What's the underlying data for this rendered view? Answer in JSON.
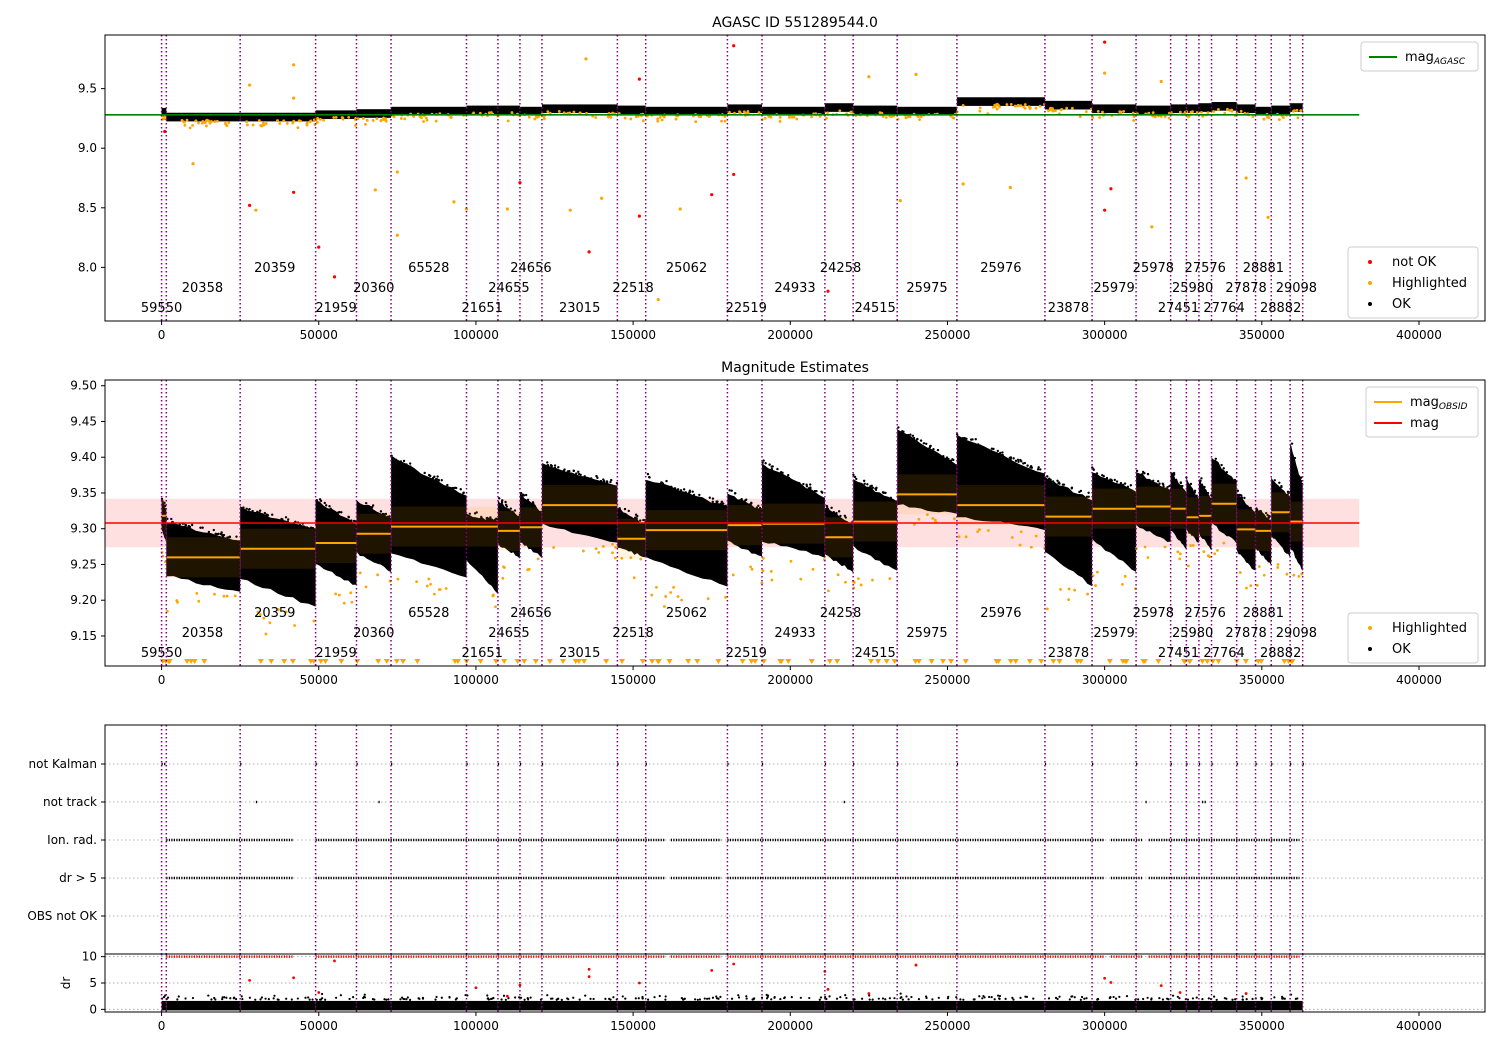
{
  "figure": {
    "background": "#ffffff"
  },
  "obs_bounds": [
    0,
    1500,
    25000,
    49000,
    62000,
    73000,
    97000,
    107000,
    114000,
    121000,
    145000,
    154000,
    180000,
    191000,
    211000,
    220000,
    234000,
    253000,
    281000,
    296000,
    310000,
    321000,
    326000,
    330000,
    334000,
    342000,
    348000,
    353000,
    359000,
    363000
  ],
  "obs_labels": [
    {
      "text": "59550",
      "x": 0,
      "row": 2
    },
    {
      "text": "20358",
      "x": 13000,
      "row": 1
    },
    {
      "text": "20359",
      "x": 36000,
      "row": 0
    },
    {
      "text": "21959",
      "x": 55500,
      "row": 2
    },
    {
      "text": "20360",
      "x": 67500,
      "row": 1
    },
    {
      "text": "65528",
      "x": 85000,
      "row": 0
    },
    {
      "text": "21651",
      "x": 102000,
      "row": 2
    },
    {
      "text": "24655",
      "x": 110500,
      "row": 1
    },
    {
      "text": "24656",
      "x": 117500,
      "row": 0
    },
    {
      "text": "23015",
      "x": 133000,
      "row": 2
    },
    {
      "text": "22518",
      "x": 150000,
      "row": 1
    },
    {
      "text": "25062",
      "x": 167000,
      "row": 0
    },
    {
      "text": "22519",
      "x": 186000,
      "row": 2
    },
    {
      "text": "24933",
      "x": 201500,
      "row": 1
    },
    {
      "text": "24258",
      "x": 216000,
      "row": 0
    },
    {
      "text": "24515",
      "x": 227000,
      "row": 2
    },
    {
      "text": "25975",
      "x": 243500,
      "row": 1
    },
    {
      "text": "25976",
      "x": 267000,
      "row": 0
    },
    {
      "text": "23878",
      "x": 288500,
      "row": 2
    },
    {
      "text": "25979",
      "x": 303000,
      "row": 1
    },
    {
      "text": "25978",
      "x": 315500,
      "row": 0
    },
    {
      "text": "27451",
      "x": 323500,
      "row": 2
    },
    {
      "text": "25980",
      "x": 328000,
      "row": 1
    },
    {
      "text": "27576",
      "x": 332000,
      "row": 0
    },
    {
      "text": "27764",
      "x": 338000,
      "row": 2
    },
    {
      "text": "27878",
      "x": 345000,
      "row": 1
    },
    {
      "text": "28881",
      "x": 350500,
      "row": 0
    },
    {
      "text": "28882",
      "x": 356000,
      "row": 2
    },
    {
      "text": "29098",
      "x": 361000,
      "row": 1
    }
  ],
  "x_axis": {
    "range": [
      -18000,
      421000
    ],
    "ticks": [
      "0",
      "50000",
      "100000",
      "150000",
      "200000",
      "250000",
      "300000",
      "350000",
      "400000"
    ]
  },
  "chart_data": [
    {
      "type": "scatter",
      "title": "AGASC ID 551289544.0",
      "xlim": [
        -18000,
        421000
      ],
      "ylim": [
        7.55,
        9.95
      ],
      "yticks": [
        "8.0",
        "8.5",
        "9.0",
        "9.5"
      ],
      "ytick_values": [
        8.0,
        8.5,
        9.0,
        9.5
      ],
      "agasc_mag": 9.28,
      "agasc_mag_line_x": [
        -18000,
        381000
      ],
      "obs_levels": [
        9.31,
        9.27,
        9.27,
        9.29,
        9.3,
        9.32,
        9.33,
        9.33,
        9.32,
        9.34,
        9.33,
        9.32,
        9.34,
        9.32,
        9.35,
        9.33,
        9.32,
        9.4,
        9.37,
        9.34,
        9.33,
        9.34,
        9.34,
        9.35,
        9.36,
        9.34,
        9.32,
        9.33,
        9.35
      ],
      "obs_spread": 0.05,
      "legends": [
        {
          "position": "top-right",
          "entries": [
            {
              "label": "mag",
              "sub": "AGASC",
              "marker": "line",
              "color": "#008000"
            }
          ]
        },
        {
          "position": "bottom-right",
          "entries": [
            {
              "label": "not OK",
              "marker": "dot",
              "color": "#ff0000"
            },
            {
              "label": "Highlighted",
              "marker": "dot",
              "color": "#ffa500"
            },
            {
              "label": "OK",
              "marker": "dot",
              "color": "#000000"
            }
          ]
        }
      ],
      "not_ok_points": [
        [
          1000,
          9.14
        ],
        [
          28000,
          8.52
        ],
        [
          42000,
          8.63
        ],
        [
          50000,
          8.17
        ],
        [
          55000,
          7.92
        ],
        [
          114000,
          8.71
        ],
        [
          136000,
          8.13
        ],
        [
          152000,
          9.58
        ],
        [
          152000,
          8.43
        ],
        [
          175000,
          8.61
        ],
        [
          182000,
          9.86
        ],
        [
          182000,
          8.78
        ],
        [
          212000,
          7.8
        ],
        [
          300000,
          9.89
        ],
        [
          300000,
          8.48
        ],
        [
          302000,
          8.66
        ]
      ],
      "highlighted_points": [
        [
          10000,
          8.87
        ],
        [
          28000,
          9.53
        ],
        [
          30000,
          8.48
        ],
        [
          42000,
          9.7
        ],
        [
          42000,
          9.42
        ],
        [
          68000,
          8.65
        ],
        [
          75000,
          8.27
        ],
        [
          75000,
          8.8
        ],
        [
          93000,
          8.55
        ],
        [
          97000,
          8.49
        ],
        [
          110000,
          8.49
        ],
        [
          130000,
          8.48
        ],
        [
          135000,
          9.75
        ],
        [
          140000,
          8.58
        ],
        [
          158000,
          7.73
        ],
        [
          165000,
          8.49
        ],
        [
          225000,
          9.6
        ],
        [
          235000,
          8.56
        ],
        [
          240000,
          9.62
        ],
        [
          255000,
          8.7
        ],
        [
          270000,
          8.67
        ],
        [
          300000,
          9.63
        ],
        [
          315000,
          8.34
        ],
        [
          318000,
          9.56
        ],
        [
          345000,
          8.75
        ],
        [
          352000,
          8.42
        ]
      ]
    },
    {
      "type": "scatter",
      "title": "Magnitude Estimates",
      "xlim": [
        -18000,
        421000
      ],
      "ylim": [
        9.108,
        9.508
      ],
      "yticks": [
        "9.15",
        "9.20",
        "9.25",
        "9.30",
        "9.35",
        "9.40",
        "9.45",
        "9.50"
      ],
      "ytick_values": [
        9.15,
        9.2,
        9.25,
        9.3,
        9.35,
        9.4,
        9.45,
        9.5
      ],
      "mag": 9.308,
      "mag_band": [
        9.274,
        9.342
      ],
      "mag_line_x": [
        -18000,
        381000
      ],
      "mag_obsid": [
        9.318,
        9.26,
        9.272,
        9.28,
        9.293,
        9.303,
        9.303,
        9.297,
        9.302,
        9.333,
        9.286,
        9.298,
        9.305,
        9.307,
        9.288,
        9.31,
        9.348,
        9.333,
        9.317,
        9.328,
        9.331,
        9.328,
        9.316,
        9.318,
        9.335,
        9.299,
        9.297,
        9.323,
        9.31
      ],
      "obs_ranges": [
        [
          9.28,
          9.34
        ],
        [
          9.21,
          9.31
        ],
        [
          9.19,
          9.33
        ],
        [
          9.22,
          9.34
        ],
        [
          9.24,
          9.34
        ],
        [
          9.23,
          9.4
        ],
        [
          9.21,
          9.32
        ],
        [
          9.26,
          9.34
        ],
        [
          9.26,
          9.35
        ],
        [
          9.28,
          9.39
        ],
        [
          9.26,
          9.33
        ],
        [
          9.22,
          9.37
        ],
        [
          9.26,
          9.35
        ],
        [
          9.26,
          9.39
        ],
        [
          9.24,
          9.33
        ],
        [
          9.24,
          9.37
        ],
        [
          9.32,
          9.44
        ],
        [
          9.3,
          9.43
        ],
        [
          9.22,
          9.37
        ],
        [
          9.24,
          9.38
        ],
        [
          9.28,
          9.38
        ],
        [
          9.27,
          9.38
        ],
        [
          9.28,
          9.37
        ],
        [
          9.27,
          9.37
        ],
        [
          9.28,
          9.4
        ],
        [
          9.24,
          9.35
        ],
        [
          9.25,
          9.33
        ],
        [
          9.26,
          9.37
        ],
        [
          9.24,
          9.42
        ]
      ],
      "legends": [
        {
          "position": "top-right",
          "entries": [
            {
              "label": "mag",
              "sub": "OBSID",
              "marker": "line",
              "color": "#ffa500"
            },
            {
              "label": "mag",
              "marker": "line",
              "color": "#ff0000"
            }
          ]
        },
        {
          "position": "bottom-right",
          "entries": [
            {
              "label": "Highlighted",
              "marker": "dot",
              "color": "#ffa500"
            },
            {
              "label": "OK",
              "marker": "dot",
              "color": "#000000"
            }
          ]
        }
      ]
    },
    {
      "type": "scatter",
      "flags": [
        "not Kalman",
        "not track",
        "Ion. rad.",
        "dr > 5",
        "OBS not OK"
      ],
      "flag_segments": {
        "not Kalman": [
          [
            0,
            1500
          ],
          [
            25000,
            25200
          ],
          [
            49000,
            49200
          ],
          [
            62000,
            62200
          ],
          [
            73000,
            73200
          ],
          [
            97000,
            97200
          ],
          [
            107000,
            107200
          ],
          [
            114000,
            114200
          ],
          [
            121000,
            121200
          ],
          [
            145000,
            145200
          ],
          [
            154000,
            154200
          ],
          [
            180000,
            180200
          ],
          [
            191000,
            191200
          ],
          [
            211000,
            211200
          ],
          [
            220000,
            220200
          ],
          [
            234000,
            234200
          ],
          [
            253000,
            253200
          ],
          [
            281000,
            281200
          ],
          [
            296000,
            296200
          ],
          [
            310000,
            310200
          ],
          [
            321000,
            321200
          ],
          [
            326000,
            326200
          ],
          [
            330000,
            330200
          ],
          [
            334000,
            334200
          ],
          [
            342000,
            342200
          ],
          [
            348000,
            348200
          ],
          [
            353000,
            353200
          ],
          [
            359000,
            359200
          ],
          [
            363000,
            363200
          ]
        ],
        "not track": [
          [
            30000,
            30300
          ],
          [
            69000,
            69300
          ],
          [
            217000,
            217300
          ],
          [
            313000,
            313300
          ],
          [
            331000,
            332500
          ]
        ],
        "Ion. rad.": [
          [
            1500,
            42000
          ],
          [
            49000,
            160000
          ],
          [
            162000,
            178000
          ],
          [
            180000,
            300000
          ],
          [
            302000,
            312000
          ],
          [
            314000,
            362000
          ]
        ],
        "dr > 5": [
          [
            1500,
            42000
          ],
          [
            49000,
            160000
          ],
          [
            162000,
            178000
          ],
          [
            180000,
            300000
          ],
          [
            302000,
            312000
          ],
          [
            314000,
            362000
          ]
        ],
        "OBS not OK": []
      }
    },
    {
      "type": "scatter",
      "ylabel": "dr",
      "ylim": [
        -0.5,
        10.5
      ],
      "yticks": [
        "0",
        "5",
        "10"
      ],
      "ytick_values": [
        0,
        5,
        10
      ],
      "dr_clip": 10,
      "red_points": [
        [
          28000,
          5.5
        ],
        [
          42000,
          6.0
        ],
        [
          50000,
          3.2
        ],
        [
          55000,
          9.2
        ],
        [
          100000,
          4.1
        ],
        [
          110000,
          2.5
        ],
        [
          114000,
          4.6
        ],
        [
          136000,
          7.6
        ],
        [
          136000,
          6.2
        ],
        [
          152000,
          5.0
        ],
        [
          175000,
          7.4
        ],
        [
          182000,
          8.6
        ],
        [
          211000,
          7.2
        ],
        [
          212000,
          3.8
        ],
        [
          225000,
          3.0
        ],
        [
          240000,
          8.4
        ],
        [
          300000,
          5.9
        ],
        [
          302000,
          5.1
        ],
        [
          318000,
          4.5
        ],
        [
          324000,
          3.2
        ],
        [
          345000,
          3.0
        ]
      ]
    }
  ]
}
